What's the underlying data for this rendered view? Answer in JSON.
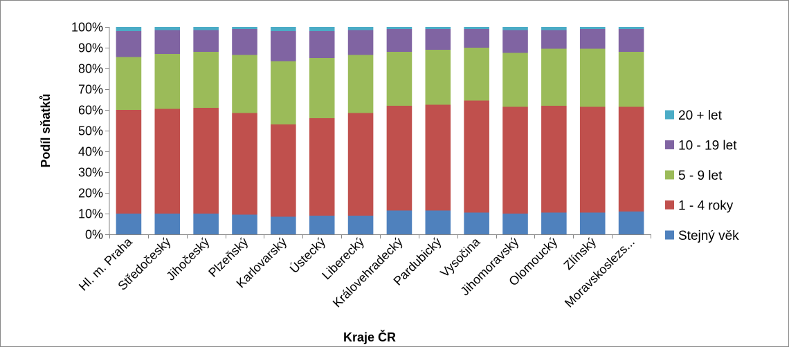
{
  "chart_data": {
    "type": "bar",
    "stacked": true,
    "title": "",
    "xlabel": "Kraje ČR",
    "ylabel": "Podíl sňatků",
    "ylim": [
      0,
      100
    ],
    "y_ticks": [
      "0%",
      "10%",
      "20%",
      "30%",
      "40%",
      "50%",
      "60%",
      "70%",
      "80%",
      "90%",
      "100%"
    ],
    "grid": false,
    "legend_position": "right",
    "categories": [
      "Hl. m. Praha",
      "Středočeský",
      "Jihočeský",
      "Plzeňský",
      "Karlovarský",
      "Ústecký",
      "Liberecký",
      "Královehradecký",
      "Pardubický",
      "Vysočina",
      "Jihomoravský",
      "Olomoucký",
      "Zlínský",
      "Moravskoslezs..."
    ],
    "series": [
      {
        "name": "Stejný věk",
        "color": "#4f81bd",
        "values": [
          10,
          10,
          10,
          9.5,
          8.5,
          9,
          9,
          11.5,
          11.5,
          10.5,
          10,
          10.5,
          10.5,
          11
        ]
      },
      {
        "name": "1 - 4 roky",
        "color": "#c0504d",
        "values": [
          50,
          50.5,
          51,
          49,
          44.5,
          47,
          49.5,
          50.5,
          51,
          54,
          51.5,
          51.5,
          51,
          50.5
        ]
      },
      {
        "name": "5 - 9 let",
        "color": "#9bbb59",
        "values": [
          25.5,
          26.5,
          27,
          28,
          30.5,
          29,
          28,
          26,
          26.5,
          25.5,
          26,
          27.5,
          28,
          26.5
        ]
      },
      {
        "name": "10 - 19 let",
        "color": "#8064a2",
        "values": [
          12.5,
          11.5,
          10.5,
          12.5,
          14.5,
          13,
          12,
          11,
          10,
          9,
          11,
          9,
          9.5,
          11
        ]
      },
      {
        "name": "20 + let",
        "color": "#4bacc6",
        "values": [
          2,
          1.5,
          1.5,
          1,
          2,
          2,
          1.5,
          1,
          1,
          1,
          1.5,
          1.5,
          1,
          1
        ]
      }
    ]
  }
}
